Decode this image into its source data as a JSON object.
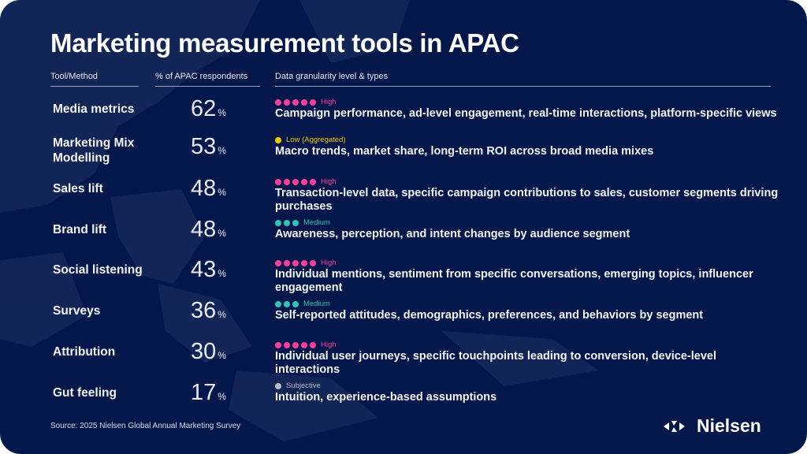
{
  "title": "Marketing measurement tools in APAC",
  "headers": {
    "tool": "Tool/Method",
    "pct": "% of APAC respondents",
    "gran": "Data granularity level & types"
  },
  "colors": {
    "background": "#04174a",
    "high": "#ff3d9a",
    "low": "#f5c800",
    "medium": "#2ec4b6",
    "subjective": "#b8bcc8"
  },
  "rows": [
    {
      "name": "Media metrics",
      "pct": "62",
      "unit": "%",
      "level": "High",
      "dots": 5,
      "color": "#ff3d9a",
      "desc": "Campaign performance, ad-level engagement, real-time interactions, platform-specific views"
    },
    {
      "name": "Marketing Mix Modelling",
      "pct": "53",
      "unit": "%",
      "level": "Low (Aggregated)",
      "dots": 1,
      "color": "#f5c800",
      "desc": "Macro trends, market share, long-term ROI across broad media mixes"
    },
    {
      "name": "Sales lift",
      "pct": "48",
      "unit": "%",
      "level": "High",
      "dots": 5,
      "color": "#ff3d9a",
      "desc": "Transaction-level data, specific campaign contributions to sales, customer segments driving purchases"
    },
    {
      "name": "Brand lift",
      "pct": "48",
      "unit": "%",
      "level": "Medium",
      "dots": 3,
      "color": "#2ec4b6",
      "desc": "Awareness, perception, and intent changes by audience segment"
    },
    {
      "name": "Social listening",
      "pct": "43",
      "unit": "%",
      "level": "High",
      "dots": 5,
      "color": "#ff3d9a",
      "desc": "Individual mentions, sentiment from specific conversations, emerging topics, influencer engagement"
    },
    {
      "name": "Surveys",
      "pct": "36",
      "unit": "%",
      "level": "Medium",
      "dots": 3,
      "color": "#2ec4b6",
      "desc": "Self-reported attitudes, demographics, preferences, and behaviors by segment"
    },
    {
      "name": "Attribution",
      "pct": "30",
      "unit": "%",
      "level": "High",
      "dots": 5,
      "color": "#ff3d9a",
      "desc": "Individual user journeys, specific touchpoints leading to conversion, device-level interactions"
    },
    {
      "name": "Gut feeling",
      "pct": "17",
      "unit": "%",
      "level": "Subjective",
      "dots": 1,
      "color": "#b8bcc8",
      "desc": "Intuition, experience-based assumptions"
    }
  ],
  "source": "Source: 2025 Nielsen Global Annual Marketing Survey",
  "logo": "Nielsen"
}
